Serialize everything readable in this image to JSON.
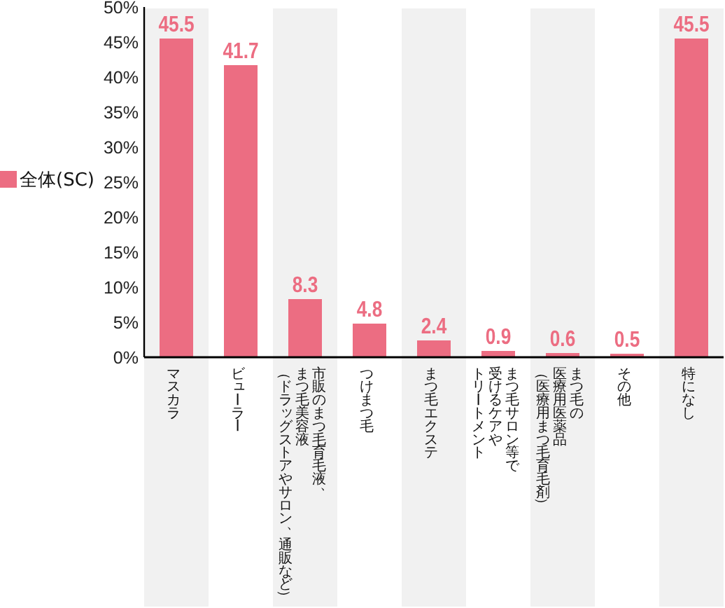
{
  "chart_data": {
    "type": "bar",
    "categories": [
      "マスカラ",
      "ビューラー",
      "市販のまつ毛育毛液、まつ毛美容液（ドラッグストアやサロン、通販など）",
      "つけまつ毛",
      "まつ毛エクステ",
      "まつ毛サロン等で受けるケアやトリートメント",
      "まつ毛の医療用医薬品（医療用まつ毛育毛剤）",
      "その他",
      "特になし"
    ],
    "series": [
      {
        "name": "全体(SC)",
        "color": "#ec6d82",
        "values": [
          45.5,
          41.7,
          8.3,
          4.8,
          2.4,
          0.9,
          0.6,
          0.5,
          45.5
        ]
      }
    ],
    "ylim": [
      0,
      50
    ],
    "yticks": [
      {
        "value": 0,
        "label": "0%"
      },
      {
        "value": 5,
        "label": "5%"
      },
      {
        "value": 10,
        "label": "10%"
      },
      {
        "value": 15,
        "label": "15%"
      },
      {
        "value": 20,
        "label": "20%"
      },
      {
        "value": 25,
        "label": "25%"
      },
      {
        "value": 30,
        "label": "30%"
      },
      {
        "value": 35,
        "label": "35%"
      },
      {
        "value": 40,
        "label": "40%"
      },
      {
        "value": 45,
        "label": "45%"
      },
      {
        "value": 50,
        "label": "50%"
      }
    ],
    "data_labels": true,
    "legend": "left"
  }
}
